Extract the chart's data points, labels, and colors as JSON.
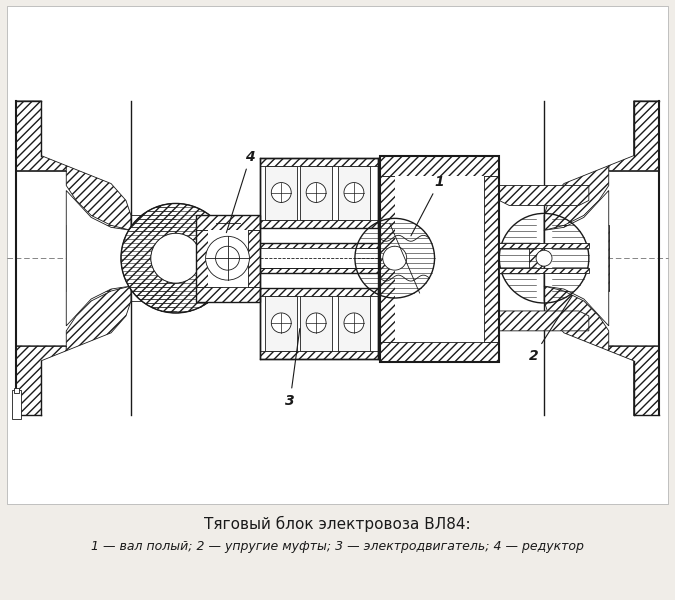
{
  "title": "Тяговый блок электровоза ВЛ84:",
  "caption": "1 — вал полый; 2 — упругие муфты; 3 — электродвигатель; 4 — редуктор",
  "bg_color": "#f0ede8",
  "line_color": "#1a1a1a",
  "fig_width": 6.75,
  "fig_height": 6.0,
  "dpi": 100
}
